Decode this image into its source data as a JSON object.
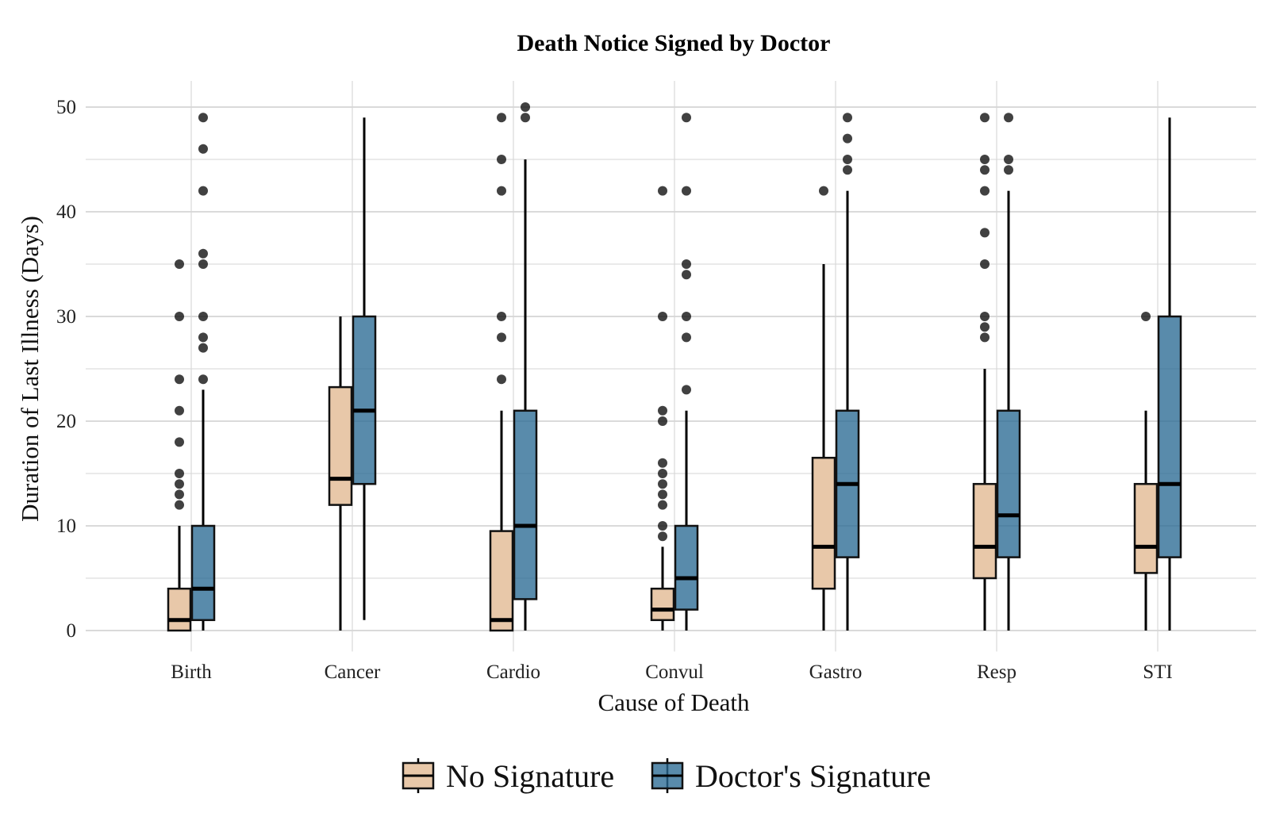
{
  "chart_data": {
    "type": "box",
    "title": "Death Notice Signed by Doctor",
    "xlabel": "Cause of Death",
    "ylabel": "Duration of Last Illness (Days)",
    "ylim": [
      -2,
      52
    ],
    "yticks": [
      0,
      10,
      20,
      30,
      40,
      50
    ],
    "grid": true,
    "legend_position": "bottom",
    "categories": [
      "Birth",
      "Cancer",
      "Cardio",
      "Convul",
      "Gastro",
      "Resp",
      "STI"
    ],
    "series": [
      {
        "name": "No Signature",
        "color": "#e8c8a9",
        "boxes": [
          {
            "whisker_low": 0,
            "q1": 0,
            "median": 1,
            "q3": 4,
            "whisker_high": 10,
            "outliers": [
              12,
              13,
              14,
              15,
              18,
              21,
              24,
              30,
              35
            ]
          },
          {
            "whisker_low": 0,
            "q1": 12,
            "median": 14.5,
            "q3": 23.25,
            "whisker_high": 30,
            "outliers": []
          },
          {
            "whisker_low": 0,
            "q1": 0,
            "median": 1,
            "q3": 9.5,
            "whisker_high": 21,
            "outliers": [
              24,
              28,
              30,
              42,
              45,
              49
            ]
          },
          {
            "whisker_low": 0,
            "q1": 1,
            "median": 2,
            "q3": 4,
            "whisker_high": 8,
            "outliers": [
              9,
              10,
              12,
              13,
              14,
              15,
              16,
              20,
              21,
              30,
              42
            ]
          },
          {
            "whisker_low": 0,
            "q1": 4,
            "median": 8,
            "q3": 16.5,
            "whisker_high": 35,
            "outliers": [
              42
            ]
          },
          {
            "whisker_low": 0,
            "q1": 5,
            "median": 8,
            "q3": 14,
            "whisker_high": 25,
            "outliers": [
              28,
              29,
              30,
              35,
              38,
              42,
              44,
              45,
              49
            ]
          },
          {
            "whisker_low": 0,
            "q1": 5.5,
            "median": 8,
            "q3": 14,
            "whisker_high": 21,
            "outliers": [
              30
            ]
          }
        ]
      },
      {
        "name": "Doctor's Signature",
        "color": "#2a6a94",
        "boxes": [
          {
            "whisker_low": 0,
            "q1": 1,
            "median": 4,
            "q3": 10,
            "whisker_high": 23,
            "outliers": [
              24,
              27,
              28,
              30,
              35,
              36,
              42,
              46,
              49
            ]
          },
          {
            "whisker_low": 1,
            "q1": 14,
            "median": 21,
            "q3": 30,
            "whisker_high": 49,
            "outliers": []
          },
          {
            "whisker_low": 0,
            "q1": 3,
            "median": 10,
            "q3": 21,
            "whisker_high": 45,
            "outliers": [
              49,
              50
            ]
          },
          {
            "whisker_low": 0,
            "q1": 2,
            "median": 5,
            "q3": 10,
            "whisker_high": 21,
            "outliers": [
              23,
              28,
              30,
              34,
              35,
              42,
              49
            ]
          },
          {
            "whisker_low": 0,
            "q1": 7,
            "median": 14,
            "q3": 21,
            "whisker_high": 42,
            "outliers": [
              44,
              45,
              47,
              49
            ]
          },
          {
            "whisker_low": 0,
            "q1": 7,
            "median": 11,
            "q3": 21,
            "whisker_high": 42,
            "outliers": [
              44,
              45,
              49
            ]
          },
          {
            "whisker_low": 0,
            "q1": 7,
            "median": 14,
            "q3": 30,
            "whisker_high": 49,
            "outliers": []
          }
        ]
      }
    ]
  }
}
